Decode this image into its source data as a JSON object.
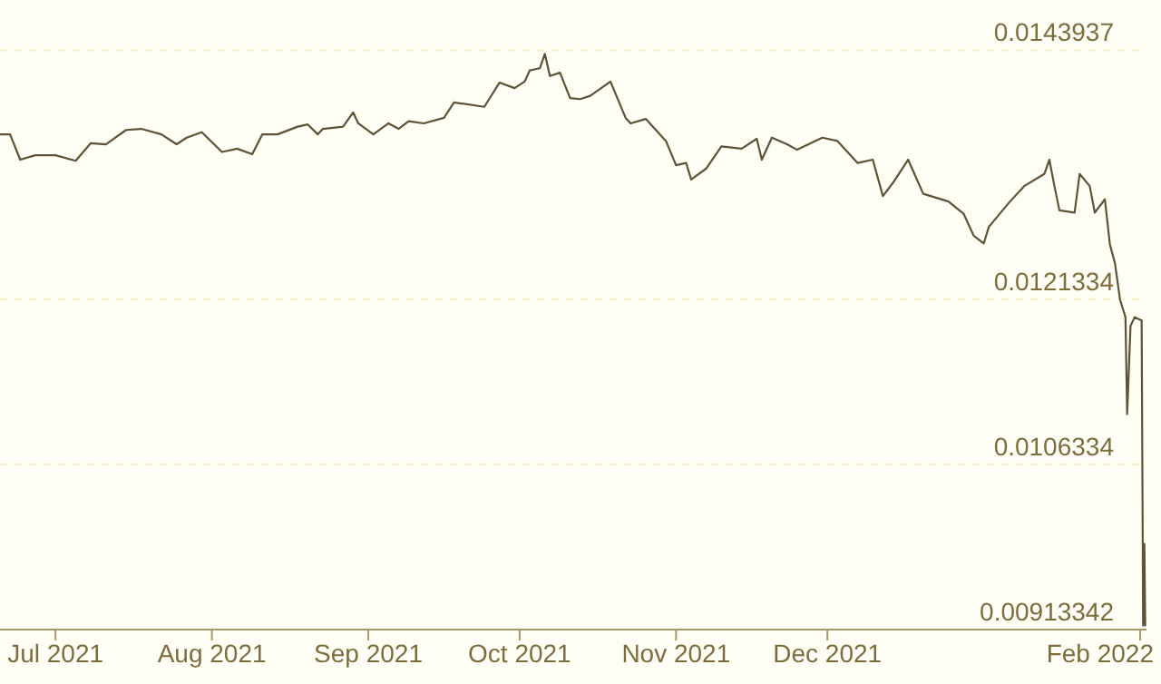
{
  "chart_data": {
    "type": "line",
    "x": [
      "2021-06-20",
      "2021-06-22",
      "2021-06-24",
      "2021-06-27",
      "2021-07-01",
      "2021-07-05",
      "2021-07-08",
      "2021-07-11",
      "2021-07-15",
      "2021-07-18",
      "2021-07-22",
      "2021-07-25",
      "2021-07-27",
      "2021-07-30",
      "2021-08-03",
      "2021-08-06",
      "2021-08-09",
      "2021-08-11",
      "2021-08-14",
      "2021-08-18",
      "2021-08-20",
      "2021-08-22",
      "2021-08-23",
      "2021-08-27",
      "2021-08-29",
      "2021-08-30",
      "2021-09-02",
      "2021-09-05",
      "2021-09-07",
      "2021-09-09",
      "2021-09-12",
      "2021-09-16",
      "2021-09-18",
      "2021-09-24",
      "2021-09-27",
      "2021-09-30",
      "2021-10-02",
      "2021-10-03",
      "2021-10-05",
      "2021-10-06",
      "2021-10-07",
      "2021-10-09",
      "2021-10-11",
      "2021-10-13",
      "2021-10-15",
      "2021-10-19",
      "2021-10-22",
      "2021-10-23",
      "2021-10-26",
      "2021-10-30",
      "2021-11-01",
      "2021-11-03",
      "2021-11-04",
      "2021-11-07",
      "2021-11-10",
      "2021-11-14",
      "2021-11-17",
      "2021-11-18",
      "2021-11-20",
      "2021-11-23",
      "2021-11-25",
      "2021-11-30",
      "2021-12-03",
      "2021-12-07",
      "2021-12-10",
      "2021-12-12",
      "2021-12-14",
      "2021-12-17",
      "2021-12-20",
      "2021-12-25",
      "2021-12-28",
      "2021-12-30",
      "2022-01-01",
      "2022-01-02",
      "2022-01-06",
      "2022-01-09",
      "2022-01-13",
      "2022-01-14",
      "2022-01-15",
      "2022-01-16",
      "2022-01-19",
      "2022-01-20",
      "2022-01-22",
      "2022-01-23",
      "2022-01-25",
      "2022-01-26",
      "2022-01-27",
      "2022-01-28",
      "2022-01-29T02:00",
      "2022-01-29T10:00",
      "2022-01-30T02:00",
      "2022-01-30T22:00",
      "2022-02-01T07:00",
      "2022-02-01T14:00",
      "2022-02-01T20:00",
      "2022-02-02T00:00"
    ],
    "series": [
      {
        "color": "#5e5238",
        "values": [
          0.01363,
          0.01363,
          0.0134,
          0.01344,
          0.01344,
          0.01339,
          0.01355,
          0.01354,
          0.01367,
          0.01368,
          0.01363,
          0.01354,
          0.0136,
          0.01365,
          0.01347,
          0.0135,
          0.01345,
          0.01363,
          0.01363,
          0.0137,
          0.01372,
          0.01363,
          0.01368,
          0.0137,
          0.01383,
          0.01373,
          0.01363,
          0.01373,
          0.01368,
          0.01375,
          0.01373,
          0.01378,
          0.01392,
          0.01388,
          0.0141,
          0.01405,
          0.01411,
          0.01421,
          0.01423,
          0.01436,
          0.01416,
          0.01419,
          0.01396,
          0.01395,
          0.01398,
          0.01411,
          0.01378,
          0.01373,
          0.01377,
          0.01357,
          0.01335,
          0.01337,
          0.01322,
          0.01332,
          0.01352,
          0.0135,
          0.01359,
          0.0134,
          0.0136,
          0.01354,
          0.01349,
          0.0136,
          0.01357,
          0.01337,
          0.0134,
          0.01307,
          0.01319,
          0.0134,
          0.01309,
          0.01302,
          0.01291,
          0.01271,
          0.01264,
          0.01279,
          0.01301,
          0.01316,
          0.01327,
          0.0134,
          0.01316,
          0.01294,
          0.01292,
          0.01327,
          0.01316,
          0.01292,
          0.01304,
          0.01263,
          0.01246,
          0.01213,
          0.01197,
          0.01109,
          0.01189,
          0.01197,
          0.01194,
          0.00917,
          0.00991,
          0.00917
        ]
      }
    ],
    "xlim": [
      "2021-06-20",
      "2022-02-02T06:00"
    ],
    "xticks": [
      {
        "value": "2021-07-01",
        "label": "Jul 2021"
      },
      {
        "value": "2021-08-01",
        "label": "Aug 2021"
      },
      {
        "value": "2021-09-01",
        "label": "Sep 2021"
      },
      {
        "value": "2021-10-01",
        "label": "Oct 2021"
      },
      {
        "value": "2021-11-01",
        "label": "Nov 2021"
      },
      {
        "value": "2021-12-01",
        "label": "Dec 2021"
      },
      {
        "value": "2022-02-01",
        "label": "Feb 2022"
      }
    ],
    "ylim": [
      0.00913342,
      0.01485
    ],
    "yticks": [
      0.00913342,
      0.0106334,
      0.0121334,
      0.0143937
    ],
    "grid": "y",
    "line_style": "solid"
  }
}
